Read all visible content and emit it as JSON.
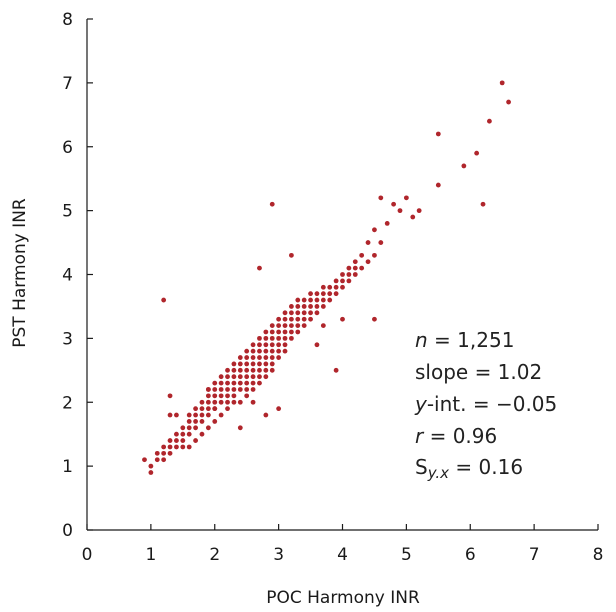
{
  "chart_data": {
    "type": "scatter",
    "title": "",
    "xlabel": "POC Harmony INR",
    "ylabel": "PST Harmony INR",
    "xlim": [
      0,
      8
    ],
    "ylim": [
      0,
      8
    ],
    "x_ticks": [
      "0",
      "1",
      "2",
      "3",
      "4",
      "5",
      "6",
      "7",
      "8"
    ],
    "y_ticks": [
      "0",
      "1",
      "2",
      "3",
      "4",
      "5",
      "6",
      "7",
      "8"
    ],
    "grid": false,
    "point_color": "#b0262c",
    "annotation": {
      "n_label": "n",
      "n_value": " = 1,251",
      "slope": "slope = 1.02",
      "yint_label": "y",
      "yint_value": "-int. = −0.05",
      "r_label": "r",
      "r_value": " = 0.96",
      "syx_label": "S",
      "syx_sub": "y.x",
      "syx_value": " = 0.16"
    },
    "x": [
      0.9,
      1.0,
      1.0,
      1.1,
      1.1,
      1.2,
      1.2,
      1.2,
      1.3,
      1.3,
      1.3,
      1.3,
      1.4,
      1.4,
      1.4,
      1.4,
      1.5,
      1.5,
      1.5,
      1.5,
      1.6,
      1.6,
      1.6,
      1.6,
      1.6,
      1.7,
      1.7,
      1.7,
      1.7,
      1.7,
      1.8,
      1.8,
      1.8,
      1.8,
      1.8,
      1.9,
      1.9,
      1.9,
      1.9,
      1.9,
      1.9,
      2.0,
      2.0,
      2.0,
      2.0,
      2.0,
      2.0,
      2.1,
      2.1,
      2.1,
      2.1,
      2.1,
      2.1,
      2.2,
      2.2,
      2.2,
      2.2,
      2.2,
      2.2,
      2.2,
      2.3,
      2.3,
      2.3,
      2.3,
      2.3,
      2.3,
      2.3,
      2.4,
      2.4,
      2.4,
      2.4,
      2.4,
      2.4,
      2.4,
      2.5,
      2.5,
      2.5,
      2.5,
      2.5,
      2.5,
      2.5,
      2.5,
      2.6,
      2.6,
      2.6,
      2.6,
      2.6,
      2.6,
      2.6,
      2.6,
      2.7,
      2.7,
      2.7,
      2.7,
      2.7,
      2.7,
      2.7,
      2.7,
      2.8,
      2.8,
      2.8,
      2.8,
      2.8,
      2.8,
      2.8,
      2.8,
      2.9,
      2.9,
      2.9,
      2.9,
      2.9,
      2.9,
      2.9,
      2.9,
      3.0,
      3.0,
      3.0,
      3.0,
      3.0,
      3.0,
      3.0,
      3.1,
      3.1,
      3.1,
      3.1,
      3.1,
      3.1,
      3.1,
      3.2,
      3.2,
      3.2,
      3.2,
      3.2,
      3.2,
      3.3,
      3.3,
      3.3,
      3.3,
      3.3,
      3.3,
      3.4,
      3.4,
      3.4,
      3.4,
      3.4,
      3.5,
      3.5,
      3.5,
      3.5,
      3.5,
      3.6,
      3.6,
      3.6,
      3.6,
      3.7,
      3.7,
      3.7,
      3.7,
      3.8,
      3.8,
      3.8,
      3.9,
      3.9,
      3.9,
      4.0,
      4.0,
      4.0,
      4.1,
      4.1,
      4.1,
      4.2,
      4.2,
      4.2,
      4.3,
      4.3,
      4.4,
      4.4,
      4.5,
      4.5,
      4.6,
      4.6,
      4.7,
      4.8,
      4.9,
      5.0,
      5.1,
      5.2,
      1.2,
      2.9,
      3.9,
      4.5,
      5.5,
      5.5,
      5.9,
      6.1,
      6.2,
      6.3,
      6.5,
      6.6,
      2.7,
      3.2,
      1.3,
      2.0,
      2.4,
      2.8,
      3.0,
      3.7,
      2.6,
      3.6,
      4.0,
      1.9
    ],
    "y": [
      1.1,
      0.9,
      1.0,
      1.1,
      1.2,
      1.1,
      1.2,
      1.3,
      1.2,
      1.3,
      1.4,
      1.8,
      1.3,
      1.4,
      1.5,
      1.8,
      1.3,
      1.4,
      1.5,
      1.6,
      1.3,
      1.5,
      1.6,
      1.7,
      1.8,
      1.4,
      1.6,
      1.7,
      1.8,
      1.9,
      1.5,
      1.7,
      1.8,
      1.9,
      2.0,
      1.6,
      1.8,
      1.9,
      2.0,
      2.1,
      2.2,
      1.7,
      1.9,
      2.0,
      2.1,
      2.2,
      2.3,
      1.8,
      2.0,
      2.1,
      2.2,
      2.3,
      2.4,
      1.9,
      2.0,
      2.1,
      2.2,
      2.3,
      2.4,
      2.5,
      2.0,
      2.1,
      2.2,
      2.3,
      2.4,
      2.5,
      2.6,
      2.0,
      2.2,
      2.3,
      2.4,
      2.5,
      2.6,
      2.7,
      2.1,
      2.2,
      2.3,
      2.4,
      2.5,
      2.6,
      2.7,
      2.8,
      2.2,
      2.3,
      2.4,
      2.5,
      2.6,
      2.7,
      2.8,
      2.9,
      2.3,
      2.4,
      2.5,
      2.6,
      2.7,
      2.8,
      2.9,
      3.0,
      2.4,
      2.5,
      2.6,
      2.7,
      2.8,
      2.9,
      3.0,
      3.1,
      2.5,
      2.6,
      2.7,
      2.8,
      2.9,
      3.0,
      3.1,
      3.2,
      2.7,
      2.8,
      2.9,
      3.0,
      3.1,
      3.2,
      3.3,
      2.8,
      2.9,
      3.0,
      3.1,
      3.2,
      3.3,
      3.4,
      3.0,
      3.1,
      3.2,
      3.3,
      3.4,
      3.5,
      3.1,
      3.2,
      3.3,
      3.4,
      3.5,
      3.6,
      3.2,
      3.3,
      3.4,
      3.5,
      3.6,
      3.3,
      3.4,
      3.5,
      3.6,
      3.7,
      3.4,
      3.5,
      3.6,
      3.7,
      3.5,
      3.6,
      3.7,
      3.8,
      3.6,
      3.7,
      3.8,
      3.7,
      3.8,
      3.9,
      3.8,
      3.9,
      4.0,
      3.9,
      4.0,
      4.1,
      4.0,
      4.1,
      4.2,
      4.1,
      4.3,
      4.2,
      4.5,
      4.3,
      4.7,
      4.5,
      5.2,
      4.8,
      5.1,
      5.0,
      5.2,
      4.9,
      5.0,
      3.6,
      5.1,
      2.5,
      3.3,
      6.2,
      5.4,
      5.7,
      5.9,
      5.1,
      6.4,
      7.0,
      6.7,
      4.1,
      4.3,
      2.1,
      1.9,
      1.6,
      1.8,
      1.9,
      3.2,
      2.0,
      2.9,
      3.3,
      2.2
    ]
  }
}
